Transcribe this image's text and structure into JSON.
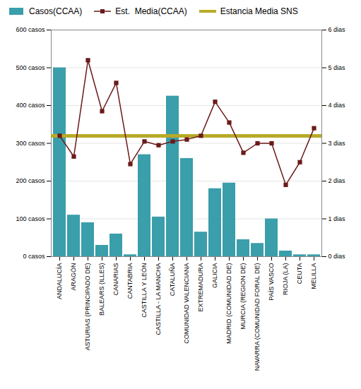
{
  "chart_data": {
    "type": "bar",
    "categories": [
      "ANDALUCÍA",
      "ARAGÓN",
      "ASTURIAS (PRINCIPADO DE)",
      "BALEARS (ILLES)",
      "CANARIAS",
      "CANTABRIA",
      "CASTILLA Y LEÓN",
      "CASTILLA - LA MANCHA",
      "CATALUÑA",
      "COMUNIDAD VALENCIANA",
      "EXTREMADURA",
      "GALICIA",
      "MADRID (COMUNIDAD DE)",
      "MURCIA (REGION DE)",
      "NAVARRA (COMUNIDAD FORAL DE)",
      "PAÍS VASCO",
      "RIOJA (LA)",
      "CEUTA",
      "MELILLA"
    ],
    "series": [
      {
        "name": "Casos(CCAA)",
        "type": "bar",
        "color": "#3a9eab",
        "values": [
          500,
          110,
          90,
          30,
          60,
          5,
          270,
          105,
          425,
          260,
          65,
          180,
          195,
          45,
          35,
          100,
          15,
          5,
          5
        ]
      },
      {
        "name": "Est.  Media(CCAA)",
        "type": "line",
        "axis": "y2",
        "color": "#6b1a1a",
        "marker": "square",
        "values": [
          3.2,
          2.65,
          5.2,
          3.85,
          4.6,
          2.45,
          3.05,
          2.95,
          3.05,
          3.1,
          3.2,
          4.1,
          3.55,
          2.75,
          3.0,
          3.0,
          1.9,
          2.5,
          3.4
        ]
      },
      {
        "name": "Estancia Media SNS",
        "type": "hline",
        "axis": "y2",
        "color": "#b8aa28",
        "values": [
          3.2,
          3.2,
          3.2,
          3.2,
          3.2,
          3.2,
          3.2,
          3.2,
          3.2,
          3.2,
          3.2,
          3.2,
          3.2,
          3.2,
          3.2,
          3.2,
          3.2,
          3.2,
          3.2
        ]
      }
    ],
    "ylim": [
      0,
      600
    ],
    "yticks": [
      {
        "value": 0,
        "label": "0 casos"
      },
      {
        "value": 100,
        "label": "100 casos"
      },
      {
        "value": 200,
        "label": "200 casos"
      },
      {
        "value": 300,
        "label": "300 casos"
      },
      {
        "value": 400,
        "label": "400 casos"
      },
      {
        "value": 500,
        "label": "500 casos"
      },
      {
        "value": 600,
        "label": "600 casos"
      }
    ],
    "y2lim": [
      0,
      6
    ],
    "y2ticks": [
      {
        "value": 0,
        "label": "0 dias"
      },
      {
        "value": 1,
        "label": "1 dias"
      },
      {
        "value": 2,
        "label": "2 dias"
      },
      {
        "value": 3,
        "label": "3 dias"
      },
      {
        "value": 4,
        "label": "4 dias"
      },
      {
        "value": 5,
        "label": "5 dias"
      },
      {
        "value": 6,
        "label": "6 dias"
      }
    ],
    "grid": true,
    "legend": "top"
  }
}
